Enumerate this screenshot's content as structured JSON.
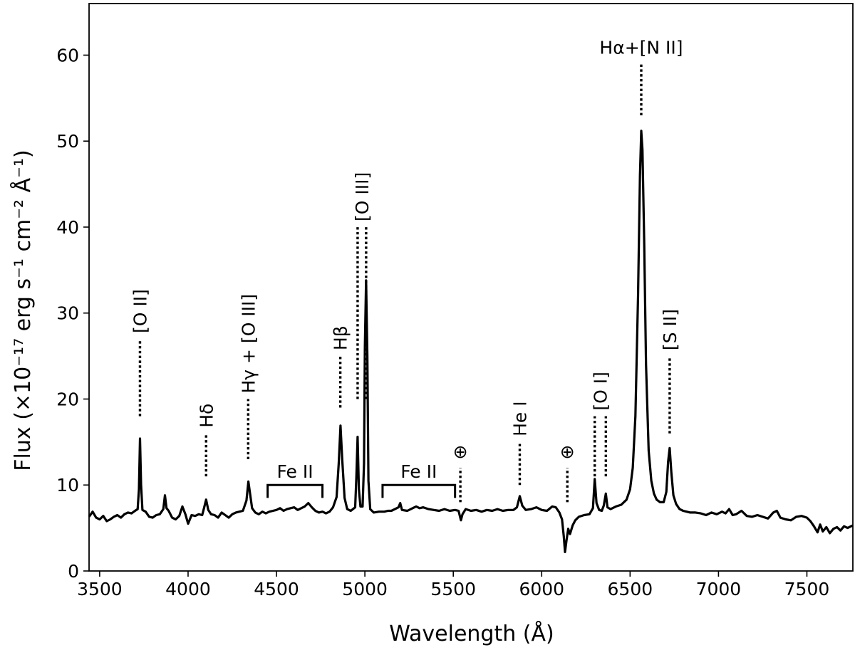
{
  "chart_data": {
    "type": "line",
    "title": "",
    "xlabel": "Wavelength (Å)",
    "ylabel": "Flux (×10⁻¹⁷ erg s⁻¹ cm⁻² Å⁻¹)",
    "xlim": [
      3440,
      7760
    ],
    "ylim": [
      0,
      66
    ],
    "grid": false,
    "legend": "none",
    "x_ticks": [
      3500,
      4000,
      4500,
      5000,
      5500,
      6000,
      6500,
      7000,
      7500
    ],
    "y_ticks": [
      0,
      10,
      20,
      30,
      40,
      50,
      60
    ],
    "line_color": "#000000",
    "series": [
      {
        "values": [
          [
            3440,
            6.3
          ],
          [
            3460,
            6.9
          ],
          [
            3480,
            6.2
          ],
          [
            3500,
            6.0
          ],
          [
            3520,
            6.4
          ],
          [
            3540,
            5.8
          ],
          [
            3560,
            6.0
          ],
          [
            3580,
            6.3
          ],
          [
            3600,
            6.5
          ],
          [
            3620,
            6.2
          ],
          [
            3640,
            6.6
          ],
          [
            3660,
            6.8
          ],
          [
            3680,
            6.7
          ],
          [
            3700,
            7.0
          ],
          [
            3715,
            7.2
          ],
          [
            3722,
            9.5
          ],
          [
            3728,
            15.4
          ],
          [
            3734,
            10.0
          ],
          [
            3742,
            7.1
          ],
          [
            3760,
            6.9
          ],
          [
            3780,
            6.3
          ],
          [
            3800,
            6.2
          ],
          [
            3820,
            6.5
          ],
          [
            3840,
            6.6
          ],
          [
            3860,
            7.2
          ],
          [
            3869,
            8.8
          ],
          [
            3878,
            7.3
          ],
          [
            3890,
            7.0
          ],
          [
            3910,
            6.2
          ],
          [
            3930,
            6.0
          ],
          [
            3950,
            6.4
          ],
          [
            3968,
            7.5
          ],
          [
            3985,
            6.6
          ],
          [
            4000,
            5.5
          ],
          [
            4020,
            6.5
          ],
          [
            4040,
            6.4
          ],
          [
            4060,
            6.6
          ],
          [
            4080,
            6.5
          ],
          [
            4090,
            7.3
          ],
          [
            4102,
            8.3
          ],
          [
            4114,
            7.1
          ],
          [
            4130,
            6.6
          ],
          [
            4150,
            6.5
          ],
          [
            4170,
            6.2
          ],
          [
            4190,
            6.8
          ],
          [
            4210,
            6.5
          ],
          [
            4230,
            6.2
          ],
          [
            4250,
            6.6
          ],
          [
            4270,
            6.8
          ],
          [
            4290,
            6.9
          ],
          [
            4310,
            7.0
          ],
          [
            4330,
            8.2
          ],
          [
            4341,
            10.4
          ],
          [
            4352,
            8.8
          ],
          [
            4362,
            7.3
          ],
          [
            4380,
            6.8
          ],
          [
            4400,
            6.6
          ],
          [
            4420,
            6.9
          ],
          [
            4440,
            6.7
          ],
          [
            4460,
            6.9
          ],
          [
            4480,
            7.0
          ],
          [
            4500,
            7.1
          ],
          [
            4520,
            7.3
          ],
          [
            4540,
            7.0
          ],
          [
            4560,
            7.2
          ],
          [
            4580,
            7.3
          ],
          [
            4600,
            7.4
          ],
          [
            4620,
            7.1
          ],
          [
            4640,
            7.3
          ],
          [
            4660,
            7.5
          ],
          [
            4680,
            7.9
          ],
          [
            4700,
            7.4
          ],
          [
            4720,
            7.0
          ],
          [
            4740,
            6.8
          ],
          [
            4760,
            6.9
          ],
          [
            4780,
            6.7
          ],
          [
            4800,
            6.9
          ],
          [
            4820,
            7.4
          ],
          [
            4840,
            8.6
          ],
          [
            4852,
            12.5
          ],
          [
            4862,
            16.9
          ],
          [
            4872,
            13.0
          ],
          [
            4885,
            8.5
          ],
          [
            4900,
            7.2
          ],
          [
            4920,
            7.0
          ],
          [
            4945,
            7.4
          ],
          [
            4952,
            11.0
          ],
          [
            4959,
            15.6
          ],
          [
            4966,
            9.5
          ],
          [
            4975,
            7.5
          ],
          [
            4987,
            7.5
          ],
          [
            4995,
            12.5
          ],
          [
            5000,
            26.0
          ],
          [
            5007,
            33.8
          ],
          [
            5014,
            25.0
          ],
          [
            5020,
            10.5
          ],
          [
            5030,
            7.2
          ],
          [
            5050,
            6.8
          ],
          [
            5080,
            6.9
          ],
          [
            5110,
            6.9
          ],
          [
            5130,
            7.0
          ],
          [
            5150,
            7.0
          ],
          [
            5170,
            7.2
          ],
          [
            5190,
            7.4
          ],
          [
            5200,
            7.9
          ],
          [
            5210,
            7.1
          ],
          [
            5240,
            7.0
          ],
          [
            5270,
            7.3
          ],
          [
            5290,
            7.5
          ],
          [
            5310,
            7.3
          ],
          [
            5330,
            7.4
          ],
          [
            5360,
            7.2
          ],
          [
            5390,
            7.1
          ],
          [
            5420,
            7.0
          ],
          [
            5450,
            7.2
          ],
          [
            5480,
            7.0
          ],
          [
            5510,
            7.1
          ],
          [
            5530,
            7.0
          ],
          [
            5543,
            5.9
          ],
          [
            5552,
            6.6
          ],
          [
            5570,
            7.2
          ],
          [
            5600,
            7.0
          ],
          [
            5630,
            7.1
          ],
          [
            5660,
            6.9
          ],
          [
            5690,
            7.1
          ],
          [
            5720,
            7.0
          ],
          [
            5750,
            7.2
          ],
          [
            5780,
            7.0
          ],
          [
            5810,
            7.1
          ],
          [
            5840,
            7.1
          ],
          [
            5860,
            7.4
          ],
          [
            5876,
            8.7
          ],
          [
            5890,
            7.6
          ],
          [
            5910,
            7.1
          ],
          [
            5940,
            7.2
          ],
          [
            5970,
            7.4
          ],
          [
            6000,
            7.1
          ],
          [
            6030,
            7.0
          ],
          [
            6060,
            7.5
          ],
          [
            6080,
            7.4
          ],
          [
            6100,
            6.8
          ],
          [
            6115,
            6.0
          ],
          [
            6125,
            4.0
          ],
          [
            6132,
            2.2
          ],
          [
            6140,
            3.5
          ],
          [
            6150,
            4.9
          ],
          [
            6160,
            4.3
          ],
          [
            6175,
            5.3
          ],
          [
            6190,
            5.9
          ],
          [
            6210,
            6.3
          ],
          [
            6240,
            6.5
          ],
          [
            6270,
            6.6
          ],
          [
            6290,
            7.3
          ],
          [
            6300,
            10.7
          ],
          [
            6310,
            7.9
          ],
          [
            6325,
            7.1
          ],
          [
            6340,
            7.0
          ],
          [
            6351,
            7.6
          ],
          [
            6363,
            9.0
          ],
          [
            6372,
            7.4
          ],
          [
            6390,
            7.2
          ],
          [
            6420,
            7.5
          ],
          [
            6450,
            7.7
          ],
          [
            6480,
            8.3
          ],
          [
            6500,
            9.5
          ],
          [
            6515,
            12.0
          ],
          [
            6530,
            18.0
          ],
          [
            6545,
            32.0
          ],
          [
            6556,
            46.0
          ],
          [
            6563,
            51.2
          ],
          [
            6570,
            49.0
          ],
          [
            6580,
            38.0
          ],
          [
            6590,
            24.0
          ],
          [
            6605,
            14.0
          ],
          [
            6620,
            10.5
          ],
          [
            6635,
            9.0
          ],
          [
            6650,
            8.3
          ],
          [
            6670,
            8.0
          ],
          [
            6690,
            8.0
          ],
          [
            6705,
            9.2
          ],
          [
            6715,
            12.7
          ],
          [
            6724,
            14.3
          ],
          [
            6733,
            11.5
          ],
          [
            6745,
            8.8
          ],
          [
            6760,
            7.8
          ],
          [
            6780,
            7.2
          ],
          [
            6800,
            7.0
          ],
          [
            6820,
            6.9
          ],
          [
            6840,
            6.8
          ],
          [
            6870,
            6.8
          ],
          [
            6900,
            6.7
          ],
          [
            6930,
            6.5
          ],
          [
            6960,
            6.8
          ],
          [
            6990,
            6.6
          ],
          [
            7020,
            6.9
          ],
          [
            7040,
            6.7
          ],
          [
            7060,
            7.2
          ],
          [
            7080,
            6.5
          ],
          [
            7100,
            6.6
          ],
          [
            7130,
            7.0
          ],
          [
            7160,
            6.4
          ],
          [
            7190,
            6.3
          ],
          [
            7220,
            6.5
          ],
          [
            7250,
            6.3
          ],
          [
            7280,
            6.1
          ],
          [
            7310,
            6.8
          ],
          [
            7330,
            7.0
          ],
          [
            7350,
            6.2
          ],
          [
            7380,
            6.0
          ],
          [
            7410,
            5.9
          ],
          [
            7440,
            6.3
          ],
          [
            7470,
            6.4
          ],
          [
            7500,
            6.2
          ],
          [
            7520,
            5.8
          ],
          [
            7540,
            5.2
          ],
          [
            7560,
            4.5
          ],
          [
            7575,
            5.4
          ],
          [
            7590,
            4.6
          ],
          [
            7610,
            5.1
          ],
          [
            7630,
            4.4
          ],
          [
            7650,
            4.9
          ],
          [
            7670,
            5.1
          ],
          [
            7690,
            4.7
          ],
          [
            7710,
            5.2
          ],
          [
            7730,
            5.0
          ],
          [
            7760,
            5.3
          ]
        ]
      }
    ],
    "annotations": [
      {
        "label": "[O II]",
        "x": 3728,
        "y_bottom": 18,
        "y_top": 27,
        "rotate": true
      },
      {
        "label": "Hδ",
        "x": 4102,
        "y_bottom": 11,
        "y_top": 16,
        "rotate": true
      },
      {
        "label": "Hγ + [O III]",
        "x": 4340,
        "y_bottom": 13,
        "y_top": 20,
        "rotate": true
      },
      {
        "label": "Hβ",
        "x": 4861,
        "y_bottom": 19,
        "y_top": 25,
        "rotate": true
      },
      {
        "label": "[O III]",
        "x_lines": [
          4959,
          5007
        ],
        "y_bottom": 20,
        "y_top": 40,
        "rotate": true
      },
      {
        "label": "⊕",
        "x": 5540,
        "y_bottom": 8,
        "y_top": 12,
        "rotate": false
      },
      {
        "label": "He I",
        "x": 5876,
        "y_bottom": 10,
        "y_top": 15,
        "rotate": true
      },
      {
        "label": "⊕",
        "x": 6145,
        "y_bottom": 8,
        "y_top": 12,
        "rotate": false
      },
      {
        "label": "[O I]",
        "x_lines": [
          6300,
          6363
        ],
        "y_bottom": 11,
        "y_top": 18,
        "rotate": true
      },
      {
        "label": "Hα+[N II]",
        "x": 6563,
        "y_bottom": 53,
        "y_top": 59,
        "rotate": false
      },
      {
        "label": "[S II]",
        "x": 6724,
        "y_bottom": 16,
        "y_top": 25,
        "rotate": true
      }
    ],
    "brackets": [
      {
        "label": "Fe II",
        "x_start": 4450,
        "x_end": 4760,
        "y": 10,
        "depth": 1.5
      },
      {
        "label": "Fe II",
        "x_start": 5100,
        "x_end": 5510,
        "y": 10,
        "depth": 1.5
      }
    ]
  }
}
